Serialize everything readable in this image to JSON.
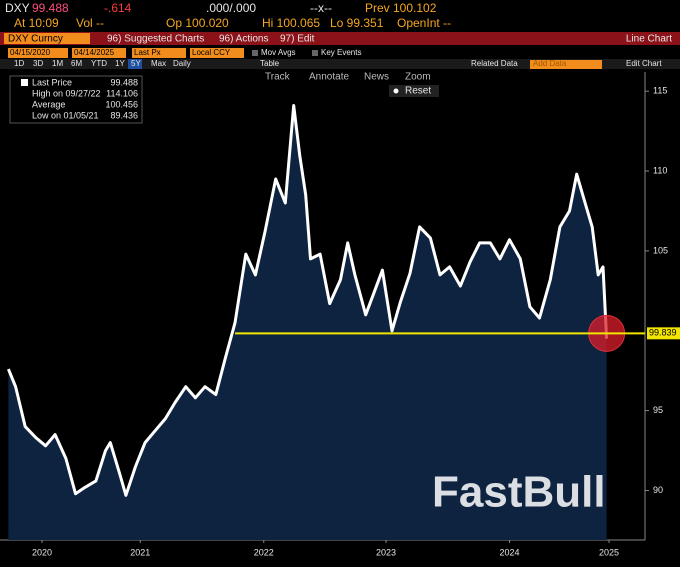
{
  "header": {
    "ticker": "DXY",
    "last": "99.488",
    "change": "-.614",
    "bid_ask": ".000/.000",
    "size": "--x--",
    "prev": "Prev 100.102",
    "time": "At 10:09",
    "vol": "Vol --",
    "open": "Op 100.020",
    "high": "Hi 100.065",
    "low": "Lo 99.351",
    "open_int": "OpenInt --"
  },
  "toolbar": {
    "security": "DXY Curncy",
    "menus": [
      "96) Suggested Charts",
      "96) Actions",
      "97) Edit"
    ],
    "chart_type": "Line Chart",
    "start_date": "04/15/2020",
    "end_date": "04/14/2025",
    "field": "Last Px",
    "currency": "Local CCY",
    "toggles": [
      "Mov Avgs",
      "Key Events"
    ],
    "periods": [
      "1D",
      "3D",
      "1M",
      "6M",
      "YTD",
      "1Y",
      "5Y",
      "Max"
    ],
    "frequency": "Daily",
    "table": "Table",
    "related": "Related Data",
    "add_data": "Add Data",
    "edit_chart": "Edit Chart",
    "tools": [
      "Track",
      "Annotate",
      "News",
      "Zoom"
    ],
    "reset": "Reset"
  },
  "legend_box": [
    {
      "label": "Last Price",
      "value": "99.488"
    },
    {
      "label": "High on 09/27/22",
      "value": "114.106"
    },
    {
      "label": "Average",
      "value": "100.456"
    },
    {
      "label": "Low on 01/05/21",
      "value": "89.436"
    }
  ],
  "watermark": "FastBull",
  "chart_data": {
    "type": "line",
    "x": [
      2020.29,
      2020.35,
      2020.43,
      2020.52,
      2020.6,
      2020.68,
      2020.77,
      2020.85,
      2020.93,
      2021.02,
      2021.1,
      2021.14,
      2021.22,
      2021.27,
      2021.35,
      2021.43,
      2021.52,
      2021.6,
      2021.68,
      2021.77,
      2021.85,
      2021.93,
      2022.02,
      2022.1,
      2022.18,
      2022.27,
      2022.35,
      2022.43,
      2022.52,
      2022.6,
      2022.67,
      2022.72,
      2022.77,
      2022.81,
      2022.89,
      2022.97,
      2023.06,
      2023.12,
      2023.18,
      2023.27,
      2023.35,
      2023.41,
      2023.49,
      2023.56,
      2023.64,
      2023.72,
      2023.81,
      2023.89,
      2023.97,
      2024.06,
      2024.14,
      2024.22,
      2024.31,
      2024.39,
      2024.47,
      2024.56,
      2024.64,
      2024.72,
      2024.81,
      2024.89,
      2024.97,
      2025.03,
      2025.1,
      2025.16,
      2025.21,
      2025.25,
      2025.28
    ],
    "series": [
      {
        "name": "Last Price",
        "color": "#ffffff",
        "values": [
          97.6,
          96.5,
          94,
          93.3,
          92.8,
          93.5,
          92,
          89.8,
          90.2,
          90.6,
          92.5,
          93,
          91,
          89.7,
          91.5,
          93,
          93.8,
          94.5,
          95.5,
          96.5,
          95.8,
          96.5,
          96,
          98.3,
          100.5,
          104.8,
          103.5,
          106.2,
          109.5,
          108,
          114.1,
          111,
          108.5,
          104.5,
          104.8,
          101.7,
          103.2,
          105.5,
          103.5,
          101,
          102.6,
          103.8,
          100,
          101.8,
          103.6,
          106.5,
          105.8,
          103.5,
          104,
          102.8,
          104.3,
          105.5,
          105.5,
          104.5,
          105.7,
          104.5,
          101.5,
          100.8,
          103.2,
          106.5,
          107.5,
          109.8,
          108,
          106.5,
          103.5,
          104,
          99.5
        ]
      }
    ],
    "xlim": [
      2020.22,
      2025.6
    ],
    "xticks": [
      {
        "value": 2020.57,
        "label": "2020"
      },
      {
        "value": 2021.39,
        "label": "2021"
      },
      {
        "value": 2022.42,
        "label": "2022"
      },
      {
        "value": 2023.44,
        "label": "2023"
      },
      {
        "value": 2024.47,
        "label": "2024"
      },
      {
        "value": 2025.3,
        "label": "2025"
      }
    ],
    "ylim": [
      86.9,
      116.2
    ],
    "yticks": [
      90,
      95,
      105,
      110,
      115
    ],
    "reference_line": {
      "value": 99.839,
      "color": "#f2e600"
    }
  }
}
